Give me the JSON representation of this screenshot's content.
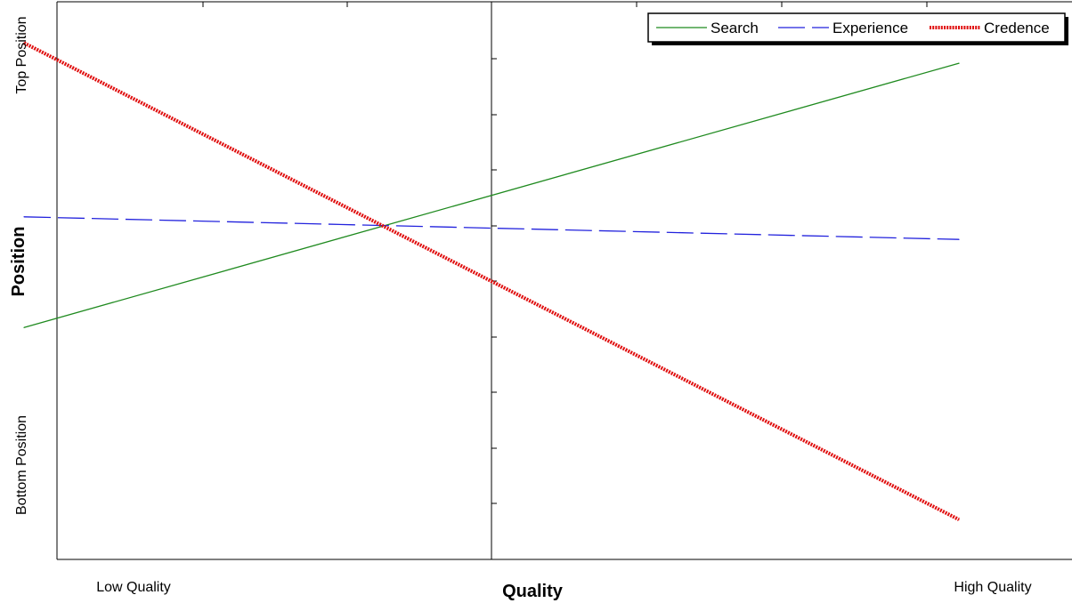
{
  "chart_data": {
    "type": "line",
    "title": "",
    "xlabel": "Quality",
    "ylabel": "Position",
    "x_tick_labels": [
      "Low Quality",
      "High Quality"
    ],
    "y_tick_labels": [
      "Top Position",
      "Bottom Position"
    ],
    "x": [
      -1,
      1
    ],
    "xlim": [
      -1.2,
      1.2
    ],
    "ylim": [
      -1.2,
      1.2
    ],
    "grid": false,
    "legend_position": "top-right",
    "series": [
      {
        "name": "Search",
        "color": "#1f8a1f",
        "style": "solid",
        "values": [
          -0.45,
          0.72
        ]
      },
      {
        "name": "Experience",
        "color": "#2222dd",
        "style": "dashed",
        "values": [
          0.04,
          -0.06
        ]
      },
      {
        "name": "Credence",
        "color": "#e01010",
        "style": "thick-dotted",
        "values": [
          0.81,
          -1.3
        ]
      }
    ]
  }
}
